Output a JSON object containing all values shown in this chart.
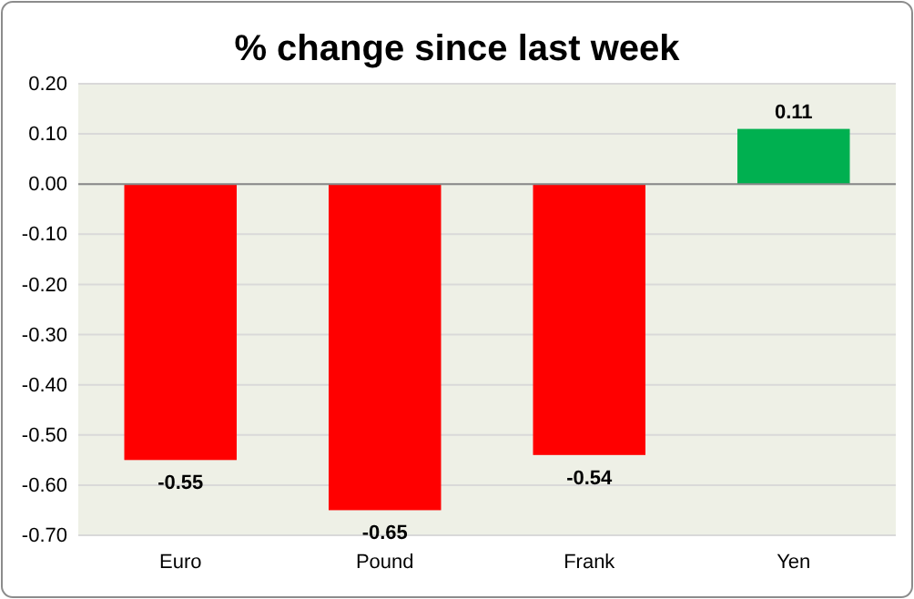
{
  "chart_data": {
    "type": "bar",
    "title": "% change since last week",
    "categories": [
      "Euro",
      "Pound",
      "Frank",
      "Yen"
    ],
    "values": [
      -0.55,
      -0.65,
      -0.54,
      0.11
    ],
    "colors": [
      "#ff0000",
      "#ff0000",
      "#ff0000",
      "#00b050"
    ],
    "ylim": [
      -0.7,
      0.2
    ],
    "yticks": [
      {
        "value": -0.7,
        "label": "-0.70"
      },
      {
        "value": -0.6,
        "label": "-0.60"
      },
      {
        "value": -0.5,
        "label": "-0.50"
      },
      {
        "value": -0.4,
        "label": "-0.40"
      },
      {
        "value": -0.3,
        "label": "-0.30"
      },
      {
        "value": -0.2,
        "label": "-0.20"
      },
      {
        "value": -0.1,
        "label": "-0.10"
      },
      {
        "value": 0,
        "label": "0.00"
      },
      {
        "value": 0.1,
        "label": "0.10"
      },
      {
        "value": 0.2,
        "label": "0.20"
      }
    ],
    "grid": "y",
    "data_labels": true
  }
}
